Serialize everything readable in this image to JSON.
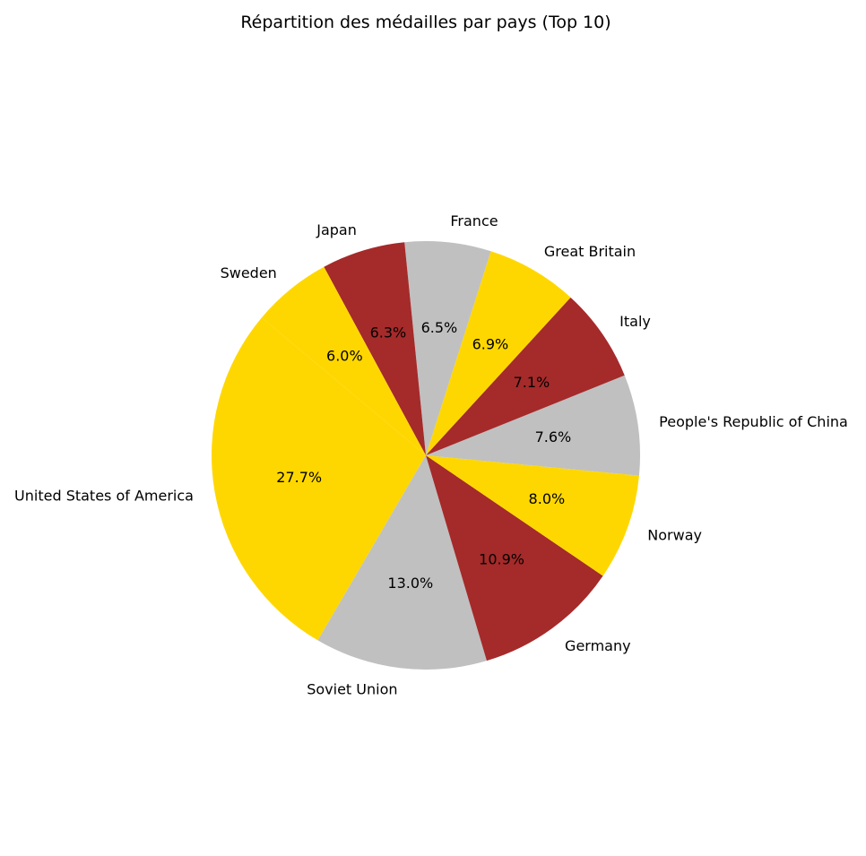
{
  "chart_data": {
    "type": "pie",
    "title": "Répartition des médailles par pays (Top 10)",
    "start_angle_deg": 140,
    "direction": "counterclockwise",
    "slices": [
      {
        "label": "United States of America",
        "value": 27.7,
        "pct_label": "27.7%",
        "color": "#FFD700"
      },
      {
        "label": "Soviet Union",
        "value": 13.0,
        "pct_label": "13.0%",
        "color": "#C0C0C0"
      },
      {
        "label": "Germany",
        "value": 10.9,
        "pct_label": "10.9%",
        "color": "#A52A2A"
      },
      {
        "label": "Norway",
        "value": 8.0,
        "pct_label": "8.0%",
        "color": "#FFD700"
      },
      {
        "label": "People's Republic of China",
        "value": 7.6,
        "pct_label": "7.6%",
        "color": "#C0C0C0"
      },
      {
        "label": "Italy",
        "value": 7.1,
        "pct_label": "7.1%",
        "color": "#A52A2A"
      },
      {
        "label": "Great Britain",
        "value": 6.9,
        "pct_label": "6.9%",
        "color": "#FFD700"
      },
      {
        "label": "France",
        "value": 6.5,
        "pct_label": "6.5%",
        "color": "#C0C0C0"
      },
      {
        "label": "Japan",
        "value": 6.3,
        "pct_label": "6.3%",
        "color": "#A52A2A"
      },
      {
        "label": "Sweden",
        "value": 6.0,
        "pct_label": "6.0%",
        "color": "#FFD700"
      }
    ]
  }
}
